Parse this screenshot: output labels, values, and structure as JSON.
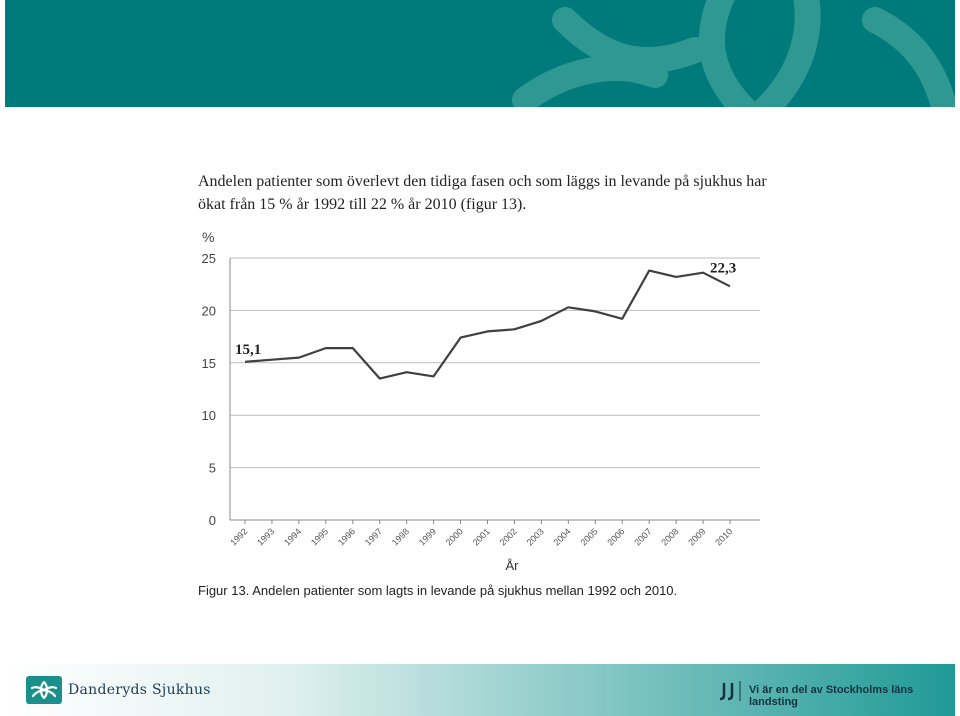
{
  "intro_text": "Andelen patienter som överlevt den tidiga fasen och som läggs in levande på sjukhus har ökat från 15 % år 1992 till 22 % år 2010 (figur 13).",
  "caption": "Figur 13. Andelen patienter som lagts in levande på sjukhus mellan 1992 och 2010.",
  "footer": {
    "brand": "Danderyds Sjukhus",
    "tagline": "Vi är en del av Stockholms läns landsting"
  },
  "colors": {
    "header": "#007a7a",
    "line": "#404040",
    "grid": "#bdbdbd"
  },
  "chart_data": {
    "type": "line",
    "ylabel": "%",
    "xlabel": "År",
    "ylim": [
      0,
      25
    ],
    "yticks": [
      0,
      5,
      10,
      15,
      20,
      25
    ],
    "grid": true,
    "x": [
      "1992",
      "1993",
      "1994",
      "1995",
      "1996",
      "1997",
      "1998",
      "1999",
      "2000",
      "2001",
      "2002",
      "2003",
      "2004",
      "2005",
      "2006",
      "2007",
      "2008",
      "2009",
      "2010"
    ],
    "series": [
      {
        "values": [
          15.1,
          15.3,
          15.5,
          16.4,
          16.4,
          13.5,
          14.1,
          13.7,
          17.4,
          18.0,
          18.2,
          19.0,
          20.3,
          19.9,
          19.2,
          23.8,
          23.2,
          23.6,
          22.3
        ]
      }
    ],
    "annotations": [
      {
        "text": "15,1",
        "x": "1992",
        "y": 15.1
      },
      {
        "text": "22,3",
        "x": "2010",
        "y": 22.3
      }
    ]
  }
}
